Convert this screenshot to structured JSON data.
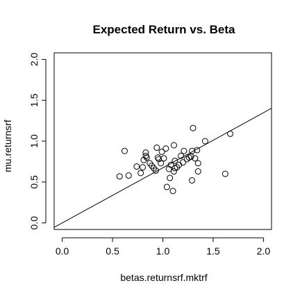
{
  "chart_data": {
    "type": "scatter",
    "title": "Expected Return vs. Beta",
    "xlabel": "betas.returnsrf.mktrf",
    "ylabel": "mu.returnsrf",
    "xlim": [
      -0.08,
      2.08
    ],
    "ylim": [
      -0.08,
      2.08
    ],
    "xticks": [
      "0.0",
      "0.5",
      "1.0",
      "1.5",
      "2.0"
    ],
    "yticks": [
      "0.0",
      "0.5",
      "1.0",
      "1.5",
      "2.0"
    ],
    "grid": false,
    "legend": "none",
    "fit_line": {
      "intercept": 0.0,
      "slope": 0.674
    },
    "points": [
      [
        0.57,
        0.57
      ],
      [
        0.62,
        0.88
      ],
      [
        0.66,
        0.58
      ],
      [
        0.74,
        0.69
      ],
      [
        0.78,
        0.61
      ],
      [
        0.8,
        0.68
      ],
      [
        0.81,
        0.77
      ],
      [
        0.83,
        0.82
      ],
      [
        0.83,
        0.86
      ],
      [
        0.84,
        0.8
      ],
      [
        0.87,
        0.73
      ],
      [
        0.89,
        0.7
      ],
      [
        0.91,
        0.67
      ],
      [
        0.93,
        0.64
      ],
      [
        0.94,
        0.92
      ],
      [
        0.95,
        0.8
      ],
      [
        0.96,
        0.78
      ],
      [
        0.98,
        0.73
      ],
      [
        0.99,
        0.87
      ],
      [
        1.01,
        0.79
      ],
      [
        1.03,
        0.91
      ],
      [
        1.04,
        0.44
      ],
      [
        1.06,
        0.66
      ],
      [
        1.07,
        0.55
      ],
      [
        1.08,
        0.71
      ],
      [
        1.1,
        0.39
      ],
      [
        1.11,
        0.95
      ],
      [
        1.11,
        0.63
      ],
      [
        1.12,
        0.67
      ],
      [
        1.12,
        0.76
      ],
      [
        1.14,
        0.68
      ],
      [
        1.16,
        0.71
      ],
      [
        1.18,
        0.82
      ],
      [
        1.2,
        0.74
      ],
      [
        1.21,
        0.88
      ],
      [
        1.24,
        0.78
      ],
      [
        1.26,
        0.8
      ],
      [
        1.28,
        0.81
      ],
      [
        1.29,
        0.88
      ],
      [
        1.29,
        0.52
      ],
      [
        1.3,
        1.16
      ],
      [
        1.32,
        0.79
      ],
      [
        1.34,
        0.89
      ],
      [
        1.35,
        0.73
      ],
      [
        1.35,
        0.63
      ],
      [
        1.42,
        1.0
      ],
      [
        1.62,
        0.6
      ],
      [
        1.67,
        1.09
      ]
    ]
  }
}
